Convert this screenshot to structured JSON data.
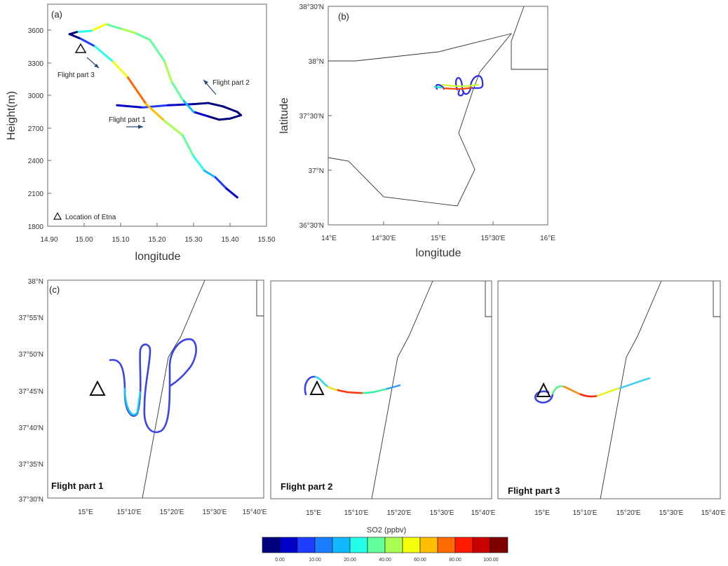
{
  "chart_data": [
    {
      "panel": "(a)",
      "type": "line",
      "xlabel": "longitude",
      "ylabel": "Height(m)",
      "xlim": [
        14.9,
        15.5
      ],
      "ylim": [
        1800,
        3800
      ],
      "xticks": [
        "14.90",
        "15.00",
        "15.10",
        "15.20",
        "15.30",
        "15.40",
        "15.50"
      ],
      "yticks": [
        "1800",
        "2100",
        "2400",
        "2700",
        "3000",
        "3300",
        "3600"
      ],
      "annotations": [
        "Flight part 1",
        "Flight part 2",
        "Flight part 3",
        "Location of Etna"
      ],
      "etna": {
        "lon": 14.99,
        "height": 3430
      },
      "track": {
        "lon": [
          15.09,
          15.16,
          15.23,
          15.3,
          15.34,
          15.38,
          15.42,
          15.43,
          15.4,
          15.37,
          15.34,
          15.3,
          15.27,
          15.24,
          15.22,
          15.18,
          15.14,
          15.1,
          15.06,
          15.02,
          14.98,
          14.96,
          14.99,
          15.03,
          15.08,
          15.12,
          15.17,
          15.22,
          15.27,
          15.3,
          15.33,
          15.36,
          15.39,
          15.42
        ],
        "height": [
          2890,
          2870,
          2890,
          2900,
          2910,
          2880,
          2830,
          2800,
          2770,
          2760,
          2790,
          2830,
          2940,
          3100,
          3290,
          3480,
          3540,
          3580,
          3620,
          3560,
          3550,
          3530,
          3490,
          3420,
          3280,
          3140,
          2900,
          2750,
          2620,
          2430,
          2300,
          2240,
          2140,
          2060
        ],
        "so2": [
          3,
          12,
          15,
          4,
          2,
          1,
          0,
          0,
          0,
          1,
          2,
          12,
          35,
          60,
          45,
          40,
          58,
          42,
          55,
          65,
          8,
          1,
          3,
          22,
          45,
          78,
          92,
          65,
          52,
          32,
          28,
          18,
          10,
          6
        ]
      }
    },
    {
      "panel": "(b)",
      "type": "map",
      "xlabel": "longitude",
      "ylabel": "latitude",
      "xlim": [
        14.0,
        16.0
      ],
      "ylim": [
        36.5,
        38.5
      ],
      "xticks": [
        "14°E",
        "14°30'E",
        "15°E",
        "15°30'E",
        "16°E"
      ],
      "yticks": [
        "36°30'N",
        "37°N",
        "37°30'N",
        "38°N",
        "38°30'N"
      ]
    },
    {
      "panel": "(c)",
      "type": "map",
      "titles": [
        "Flight part 1",
        "Flight part 2",
        "Flight part 3"
      ],
      "xticks": [
        "15°E",
        "15°10'E",
        "15°20'E",
        "15°30'E",
        "15°40'E"
      ],
      "yticks": [
        "37°30'N",
        "37°35'N",
        "37°40'N",
        "37°45'N",
        "37°50'N",
        "37°55'N",
        "38°N"
      ]
    },
    {
      "type": "colorbar",
      "title": "SO2 (ppbv)",
      "ticks": [
        "0.00",
        "10.00",
        "20.00",
        "40.00",
        "60.00",
        "80.00",
        "100.00"
      ],
      "colors": [
        "#00007f",
        "#0000c8",
        "#1f3dff",
        "#1a7dff",
        "#10b9ff",
        "#24ffe8",
        "#62ff9c",
        "#a8ff52",
        "#f4ff0c",
        "#ffbe00",
        "#ff6a00",
        "#ff1a00",
        "#c80000",
        "#7f0000"
      ]
    }
  ]
}
